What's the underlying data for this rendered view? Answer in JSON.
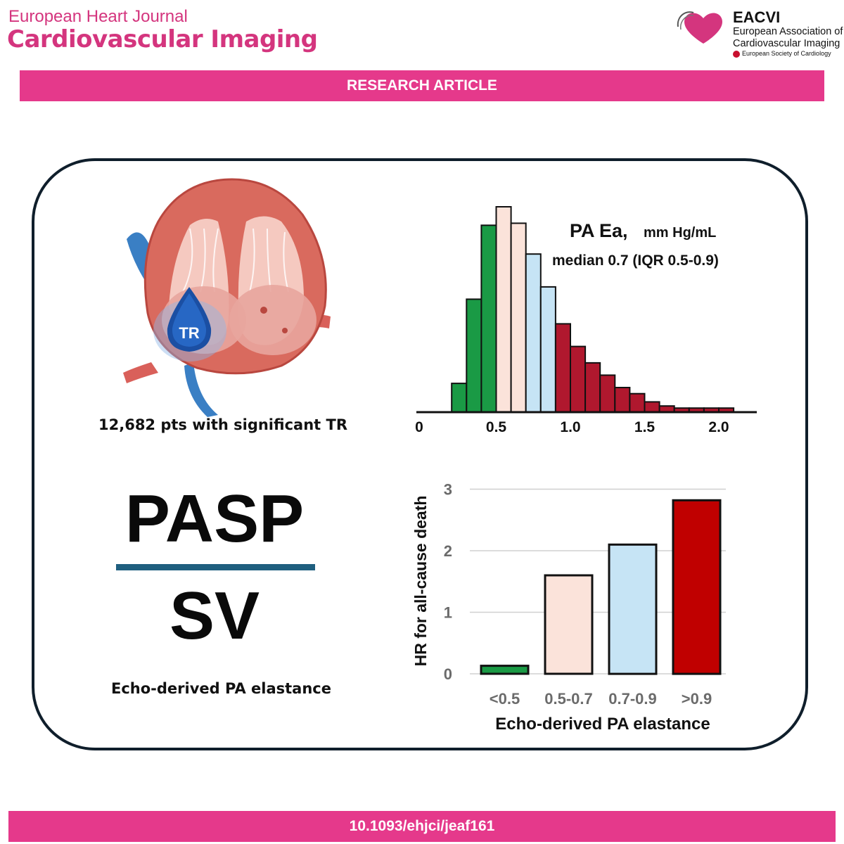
{
  "header": {
    "journal_top": "European Heart Journal",
    "journal_main": "Cardiovascular Imaging",
    "logo": {
      "abbr": "EACVI",
      "line1": "European Association of",
      "line2": "Cardiovascular Imaging",
      "esc": "European Society of Cardiology"
    }
  },
  "banner": "RESEARCH ARTICLE",
  "footer": "10.1093/ehjci/jeaf161",
  "heart": {
    "label": "TR",
    "caption": "12,682 pts with significant TR"
  },
  "formula": {
    "numerator": "PASP",
    "denominator": "SV",
    "caption": "Echo-derived PA elastance"
  },
  "colors": {
    "brand": "#e5398b",
    "green": "#1a9a45",
    "peach": "#fbe3da",
    "light_blue": "#c6e4f5",
    "dark_red": "#b0182e",
    "red": "#c00000",
    "fraction_line": "#1f5f7f",
    "panel_border": "#0f1e2b"
  },
  "chart_data": [
    {
      "type": "bar",
      "subtype": "histogram",
      "title_bold": "PA Ea,",
      "title_unit": "mm Hg/mL",
      "subtitle": "median 0.7 (IQR 0.5-0.9)",
      "xlabel": "",
      "ylabel": "",
      "xlim": [
        0,
        2.3
      ],
      "xticks": [
        "0",
        "0.5",
        "1.0",
        "1.5",
        "2.0"
      ],
      "tick_values": [
        0,
        0.5,
        1.0,
        1.5,
        2.0
      ],
      "bin_width": 0.1,
      "bin_starts": [
        0.2,
        0.3,
        0.4,
        0.5,
        0.6,
        0.7,
        0.8,
        0.9,
        1.0,
        1.1,
        1.2,
        1.3,
        1.4,
        1.5,
        1.6,
        1.7,
        1.8,
        1.9,
        2.0
      ],
      "values": [
        14,
        55,
        91,
        100,
        92,
        77,
        61,
        43,
        32,
        24,
        18,
        12,
        9,
        5,
        3,
        2,
        2,
        2,
        2
      ],
      "bin_colors": [
        "green",
        "green",
        "green",
        "peach",
        "peach",
        "light_blue",
        "light_blue",
        "dark_red",
        "dark_red",
        "dark_red",
        "dark_red",
        "dark_red",
        "dark_red",
        "dark_red",
        "dark_red",
        "dark_red",
        "dark_red",
        "dark_red",
        "dark_red"
      ],
      "grid": false
    },
    {
      "type": "bar",
      "categories": [
        "<0.5",
        "0.5-0.7",
        "0.7-0.9",
        ">0.9"
      ],
      "values": [
        0.13,
        1.6,
        2.1,
        2.82
      ],
      "bar_colors": [
        "green",
        "peach",
        "light_blue",
        "red"
      ],
      "xlabel": "Echo-derived PA elastance",
      "ylabel": "HR for all-cause death",
      "ylim": [
        0,
        3
      ],
      "yticks": [
        "0",
        "1",
        "2",
        "3"
      ],
      "ytick_values": [
        0,
        1,
        2,
        3
      ],
      "grid": true
    }
  ]
}
